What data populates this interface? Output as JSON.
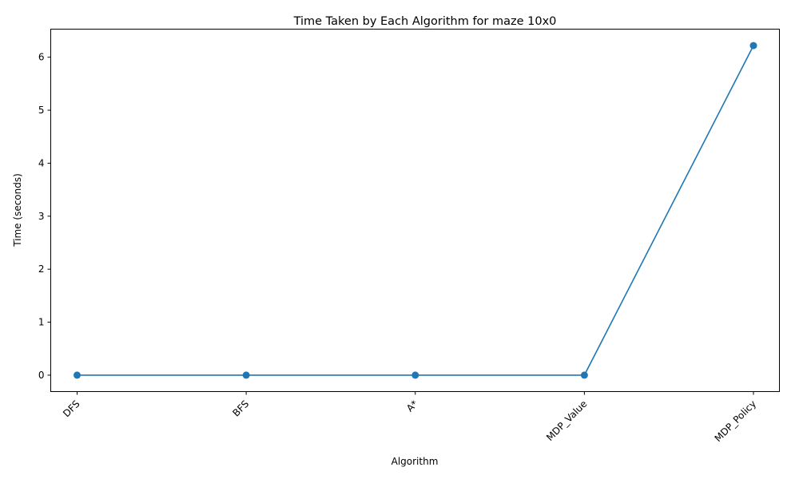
{
  "chart_data": {
    "type": "line",
    "title": "Time Taken by Each Algorithm for maze 10x0",
    "xlabel": "Algorithm",
    "ylabel": "Time (seconds)",
    "categories": [
      "DFS",
      "BFS",
      "A*",
      "MDP_Value",
      "MDP_Policy"
    ],
    "series": [
      {
        "values": [
          0.0,
          0.0,
          0.0,
          0.0,
          6.22
        ],
        "color": "#1f77b4",
        "marker": "circle"
      }
    ],
    "ylim": [
      -0.31,
      6.53
    ],
    "yticks": [
      0,
      1,
      2,
      3,
      4,
      5,
      6
    ],
    "grid": false,
    "legend": "none"
  }
}
